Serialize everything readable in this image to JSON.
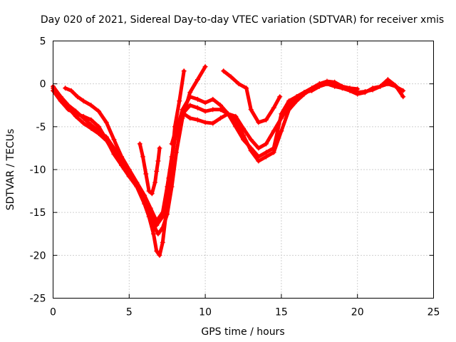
{
  "chart_data": {
    "type": "scatter",
    "title": "Day 020 of 2021, Sidereal Day-to-day VTEC variation (SDTVAR) for receiver xmis",
    "xlabel": "GPS time / hours",
    "ylabel": "SDTVAR / TECUs",
    "xlim": [
      0,
      25
    ],
    "ylim": [
      -25,
      5
    ],
    "x_ticks": [
      0,
      5,
      10,
      15,
      20,
      25
    ],
    "y_ticks": [
      5,
      0,
      -5,
      -10,
      -15,
      -20,
      -25
    ],
    "x_tick_labels": [
      "0",
      "5",
      "10",
      "15",
      "20",
      "25"
    ],
    "y_tick_labels": [
      "5",
      "0",
      "-5",
      "-10",
      "-15",
      "-20",
      "-25"
    ],
    "grid": true,
    "marker": "+",
    "series_color": "#ff0000",
    "series": [
      {
        "name": "track-1",
        "x": [
          0.0,
          0.5,
          1.0,
          1.5,
          2.0,
          2.5,
          3.0,
          3.5,
          4.0,
          4.5,
          5.0,
          5.5,
          6.0,
          6.3,
          6.6,
          6.8,
          7.0,
          7.2,
          7.5,
          7.8,
          8.0,
          8.3,
          8.6
        ],
        "y": [
          -0.3,
          -1.5,
          -2.8,
          -3.8,
          -4.6,
          -5.2,
          -5.8,
          -6.6,
          -8.0,
          -9.5,
          -10.8,
          -12.0,
          -14.0,
          -15.5,
          -17.5,
          -19.5,
          -20.0,
          -18.5,
          -14.0,
          -9.0,
          -5.0,
          -2.0,
          1.5
        ]
      },
      {
        "name": "track-2",
        "x": [
          0.0,
          0.5,
          1.0,
          1.5,
          2.0,
          2.5,
          3.0,
          3.5,
          4.0,
          4.5,
          5.0,
          5.5,
          6.0,
          6.3,
          6.6,
          6.9,
          7.2,
          7.5,
          7.8,
          8.1,
          8.5,
          9.0,
          9.5,
          10.0
        ],
        "y": [
          -0.8,
          -2.0,
          -3.0,
          -3.5,
          -3.8,
          -4.2,
          -5.0,
          -6.5,
          -8.2,
          -9.5,
          -10.8,
          -11.8,
          -13.2,
          -14.8,
          -16.5,
          -17.5,
          -16.8,
          -15.2,
          -12.0,
          -8.0,
          -4.0,
          -1.0,
          0.5,
          2.0
        ]
      },
      {
        "name": "track-3",
        "x": [
          0.0,
          0.5,
          1.0,
          1.5,
          2.0,
          2.5,
          3.0,
          3.5,
          4.0,
          4.5,
          5.0,
          5.5,
          6.0,
          6.4,
          6.8,
          7.2,
          7.5,
          7.8,
          8.1,
          8.5,
          9.0,
          9.5,
          10.0,
          10.5,
          11.0,
          11.5,
          12.0,
          12.5,
          13.0,
          13.5,
          14.0,
          14.5,
          15.0,
          15.5,
          16.0,
          16.5,
          17.0,
          17.5,
          18.0,
          18.5,
          19.0,
          19.5,
          20.0,
          20.5,
          21.0,
          21.5,
          22.0,
          22.5,
          23.0
        ],
        "y": [
          -0.5,
          -1.5,
          -2.5,
          -3.2,
          -4.0,
          -4.8,
          -5.5,
          -6.2,
          -7.5,
          -9.0,
          -10.5,
          -12.0,
          -13.5,
          -15.5,
          -16.5,
          -15.5,
          -12.0,
          -8.5,
          -5.5,
          -3.0,
          -1.5,
          -1.8,
          -2.2,
          -1.8,
          -2.5,
          -3.5,
          -5.0,
          -6.5,
          -7.5,
          -8.5,
          -8.0,
          -7.5,
          -3.5,
          -2.0,
          -1.5,
          -1.0,
          -0.8,
          -0.3,
          0.0,
          -0.3,
          -0.5,
          -0.6,
          -1.0,
          -0.9,
          -0.7,
          -0.3,
          0.0,
          -0.3,
          -0.8
        ]
      },
      {
        "name": "track-4",
        "x": [
          0.8,
          1.2,
          1.6,
          2.0,
          2.5,
          3.0,
          3.5,
          4.0,
          4.5,
          5.0,
          5.5,
          6.0,
          6.4,
          6.8,
          7.2,
          7.6,
          8.0,
          8.5,
          9.0,
          9.5,
          10.0,
          10.5,
          11.0,
          11.5,
          12.0,
          12.5,
          13.0,
          13.5,
          14.0,
          14.5,
          15.0,
          15.5,
          16.0,
          16.5,
          17.0,
          17.5,
          18.0,
          18.5,
          19.0,
          19.5,
          20.0,
          20.5,
          21.0,
          21.5,
          22.0,
          22.5,
          23.0
        ],
        "y": [
          -0.5,
          -0.8,
          -1.5,
          -2.0,
          -2.5,
          -3.2,
          -4.5,
          -6.5,
          -8.5,
          -10.0,
          -11.5,
          -13.0,
          -14.5,
          -16.0,
          -15.0,
          -11.0,
          -6.5,
          -3.5,
          -2.5,
          -2.8,
          -3.2,
          -3.0,
          -3.0,
          -3.5,
          -4.2,
          -6.0,
          -7.8,
          -9.0,
          -8.5,
          -8.0,
          -5.5,
          -3.0,
          -2.0,
          -1.2,
          -0.6,
          0.0,
          0.2,
          -0.2,
          -0.5,
          -0.8,
          -1.2,
          -1.0,
          -0.5,
          -0.3,
          0.5,
          -0.2,
          -1.5
        ]
      },
      {
        "name": "track-5",
        "x": [
          7.8,
          8.2,
          8.6,
          9.0,
          9.5,
          10.0,
          10.5,
          11.0,
          11.5,
          12.0,
          12.5,
          13.0,
          13.5,
          14.0,
          14.5,
          15.0,
          15.5,
          16.0,
          16.5,
          17.0,
          17.5,
          18.0,
          18.5,
          19.0,
          19.5,
          20.0
        ],
        "y": [
          -7.0,
          -4.5,
          -3.5,
          -4.0,
          -4.2,
          -4.5,
          -4.6,
          -4.0,
          -3.5,
          -3.8,
          -5.2,
          -6.5,
          -7.5,
          -7.0,
          -5.5,
          -4.0,
          -2.5,
          -1.5,
          -1.0,
          -0.5,
          0.0,
          0.3,
          0.2,
          -0.3,
          -0.5,
          -0.6
        ]
      },
      {
        "name": "track-6",
        "x": [
          11.2,
          11.7,
          12.2,
          12.7,
          13.0,
          13.5,
          14.0,
          14.5,
          14.9
        ],
        "y": [
          1.5,
          0.8,
          0.0,
          -0.5,
          -3.0,
          -4.5,
          -4.2,
          -2.8,
          -1.5
        ]
      },
      {
        "name": "track-7",
        "x": [
          5.7,
          5.9,
          6.1,
          6.3,
          6.5,
          6.7,
          6.8,
          6.9,
          7.0
        ],
        "y": [
          -7.0,
          -8.5,
          -10.5,
          -12.5,
          -12.8,
          -11.5,
          -10.2,
          -9.0,
          -7.5
        ]
      }
    ]
  }
}
